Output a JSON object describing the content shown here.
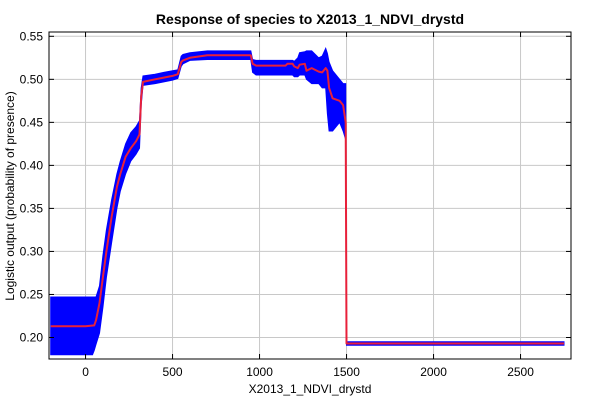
{
  "chart_data": {
    "type": "line",
    "title": "Response of species to X2013_1_NDVI_drystd",
    "xlabel": "X2013_1_NDVI_drystd",
    "ylabel": "Logistic output (probability of presence)",
    "xlim": [
      -210,
      2790
    ],
    "ylim": [
      0.175,
      0.555
    ],
    "xticks": [
      0,
      500,
      1000,
      1500,
      2000,
      2500
    ],
    "yticks": [
      0.2,
      0.25,
      0.3,
      0.35,
      0.4,
      0.45,
      0.5,
      0.55
    ],
    "xtick_labels": [
      "0",
      "500",
      "1000",
      "1500",
      "2000",
      "2500"
    ],
    "ytick_labels": [
      "0.20",
      "0.25",
      "0.30",
      "0.35",
      "0.40",
      "0.45",
      "0.50",
      "0.55"
    ],
    "grid": true,
    "series": [
      {
        "kind": "mean-line",
        "color": "#e8203a",
        "x": [
          -200,
          -150,
          -100,
          0,
          50,
          60,
          80,
          100,
          120,
          150,
          180,
          200,
          230,
          260,
          290,
          310,
          320,
          330,
          400,
          450,
          500,
          530,
          550,
          560,
          600,
          700,
          800,
          900,
          950,
          960,
          980,
          1000,
          1100,
          1150,
          1160,
          1190,
          1200,
          1220,
          1230,
          1260,
          1270,
          1300,
          1340,
          1360,
          1380,
          1390,
          1400,
          1420,
          1460,
          1480,
          1495,
          1500,
          2000,
          2500,
          2750
        ],
        "y": [
          0.213,
          0.213,
          0.213,
          0.213,
          0.214,
          0.22,
          0.24,
          0.27,
          0.3,
          0.34,
          0.375,
          0.39,
          0.41,
          0.42,
          0.428,
          0.436,
          0.48,
          0.497,
          0.5,
          0.502,
          0.504,
          0.506,
          0.52,
          0.522,
          0.525,
          0.528,
          0.528,
          0.528,
          0.528,
          0.518,
          0.516,
          0.516,
          0.516,
          0.516,
          0.518,
          0.518,
          0.515,
          0.513,
          0.517,
          0.518,
          0.51,
          0.513,
          0.509,
          0.508,
          0.513,
          0.51,
          0.49,
          0.478,
          0.475,
          0.47,
          0.45,
          0.193,
          0.193,
          0.193,
          0.193
        ]
      },
      {
        "kind": "band",
        "color": "#0000ff",
        "x": [
          -200,
          -150,
          -100,
          0,
          40,
          50,
          60,
          80,
          100,
          120,
          150,
          180,
          200,
          230,
          260,
          290,
          310,
          320,
          330,
          400,
          450,
          500,
          530,
          550,
          560,
          600,
          700,
          800,
          900,
          950,
          960,
          980,
          1000,
          1100,
          1150,
          1160,
          1190,
          1200,
          1220,
          1230,
          1260,
          1270,
          1300,
          1340,
          1360,
          1380,
          1390,
          1400,
          1420,
          1460,
          1480,
          1495,
          1500,
          2000,
          2500,
          2750
        ],
        "upper": [
          0.247,
          0.247,
          0.247,
          0.247,
          0.247,
          0.247,
          0.247,
          0.26,
          0.295,
          0.325,
          0.36,
          0.39,
          0.405,
          0.425,
          0.438,
          0.445,
          0.452,
          0.49,
          0.504,
          0.506,
          0.508,
          0.51,
          0.511,
          0.527,
          0.529,
          0.531,
          0.533,
          0.533,
          0.533,
          0.533,
          0.523,
          0.522,
          0.522,
          0.522,
          0.522,
          0.522,
          0.522,
          0.521,
          0.525,
          0.531,
          0.532,
          0.533,
          0.533,
          0.525,
          0.527,
          0.536,
          0.53,
          0.52,
          0.51,
          0.5,
          0.495,
          0.495,
          0.195,
          0.195,
          0.195,
          0.195
        ],
        "lower": [
          0.18,
          0.18,
          0.18,
          0.18,
          0.18,
          0.185,
          0.192,
          0.205,
          0.235,
          0.27,
          0.31,
          0.35,
          0.37,
          0.39,
          0.405,
          0.413,
          0.42,
          0.47,
          0.493,
          0.495,
          0.497,
          0.499,
          0.501,
          0.515,
          0.518,
          0.522,
          0.523,
          0.523,
          0.523,
          0.523,
          0.508,
          0.505,
          0.505,
          0.505,
          0.505,
          0.505,
          0.505,
          0.503,
          0.503,
          0.505,
          0.505,
          0.5,
          0.495,
          0.495,
          0.49,
          0.49,
          0.46,
          0.44,
          0.44,
          0.45,
          0.44,
          0.43,
          0.191,
          0.191,
          0.191,
          0.191
        ]
      }
    ]
  }
}
